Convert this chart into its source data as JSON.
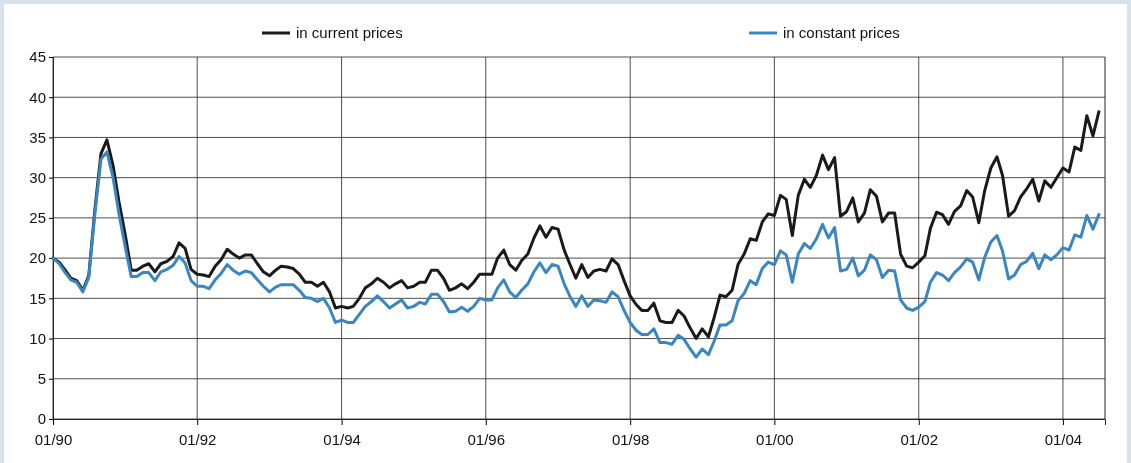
{
  "chart_data": {
    "type": "line",
    "x": [
      "1990-01",
      "1990-02",
      "1990-03",
      "1990-04",
      "1990-05",
      "1990-06",
      "1990-07",
      "1990-08",
      "1990-09",
      "1990-10",
      "1990-11",
      "1990-12",
      "1991-01",
      "1991-02",
      "1991-03",
      "1991-04",
      "1991-05",
      "1991-06",
      "1991-07",
      "1991-08",
      "1991-09",
      "1991-10",
      "1991-11",
      "1991-12",
      "1992-01",
      "1992-02",
      "1992-03",
      "1992-04",
      "1992-05",
      "1992-06",
      "1992-07",
      "1992-08",
      "1992-09",
      "1992-10",
      "1992-11",
      "1992-12",
      "1993-01",
      "1993-02",
      "1993-03",
      "1993-04",
      "1993-05",
      "1993-06",
      "1993-07",
      "1993-08",
      "1993-09",
      "1993-10",
      "1993-11",
      "1993-12",
      "1994-01",
      "1994-02",
      "1994-03",
      "1994-04",
      "1994-05",
      "1994-06",
      "1994-07",
      "1994-08",
      "1994-09",
      "1994-10",
      "1994-11",
      "1994-12",
      "1995-01",
      "1995-02",
      "1995-03",
      "1995-04",
      "1995-05",
      "1995-06",
      "1995-07",
      "1995-08",
      "1995-09",
      "1995-10",
      "1995-11",
      "1995-12",
      "1996-01",
      "1996-02",
      "1996-03",
      "1996-04",
      "1996-05",
      "1996-06",
      "1996-07",
      "1996-08",
      "1996-09",
      "1996-10",
      "1996-11",
      "1996-12",
      "1997-01",
      "1997-02",
      "1997-03",
      "1997-04",
      "1997-05",
      "1997-06",
      "1997-07",
      "1997-08",
      "1997-09",
      "1997-10",
      "1997-11",
      "1997-12",
      "1998-01",
      "1998-02",
      "1998-03",
      "1998-04",
      "1998-05",
      "1998-06",
      "1998-07",
      "1998-08",
      "1998-09",
      "1998-10",
      "1998-11",
      "1998-12",
      "1999-01",
      "1999-02",
      "1999-03",
      "1999-04",
      "1999-05",
      "1999-06",
      "1999-07",
      "1999-08",
      "1999-09",
      "1999-10",
      "1999-11",
      "1999-12",
      "2000-01",
      "2000-02",
      "2000-03",
      "2000-04",
      "2000-05",
      "2000-06",
      "2000-07",
      "2000-08",
      "2000-09",
      "2000-10",
      "2000-11",
      "2000-12",
      "2001-01",
      "2001-02",
      "2001-03",
      "2001-04",
      "2001-05",
      "2001-06",
      "2001-07",
      "2001-08",
      "2001-09",
      "2001-10",
      "2001-11",
      "2001-12",
      "2002-01",
      "2002-02",
      "2002-03",
      "2002-04",
      "2002-05",
      "2002-06",
      "2002-07",
      "2002-08",
      "2002-09",
      "2002-10",
      "2002-11",
      "2002-12",
      "2003-01",
      "2003-02",
      "2003-03",
      "2003-04",
      "2003-05",
      "2003-06",
      "2003-07",
      "2003-08",
      "2003-09",
      "2003-10",
      "2003-11",
      "2003-12",
      "2004-01",
      "2004-02",
      "2004-03",
      "2004-04",
      "2004-05",
      "2004-06",
      "2004-07"
    ],
    "xlim": [
      "1990-01",
      "2004-08"
    ],
    "xticks": [
      {
        "value": "1990-01",
        "label": "01/90"
      },
      {
        "value": "1992-01",
        "label": "01/92"
      },
      {
        "value": "1994-01",
        "label": "01/94"
      },
      {
        "value": "1996-01",
        "label": "01/96"
      },
      {
        "value": "1998-01",
        "label": "01/98"
      },
      {
        "value": "2000-01",
        "label": "01/00"
      },
      {
        "value": "2002-01",
        "label": "01/02"
      },
      {
        "value": "2004-01",
        "label": "01/04"
      }
    ],
    "ylim": [
      0,
      45
    ],
    "yticks": [
      0,
      5,
      10,
      15,
      20,
      25,
      30,
      35,
      40,
      45
    ],
    "grid": true,
    "legend": "top",
    "line_style": "solid",
    "marker": "none",
    "series": [
      {
        "name": "in current prices",
        "color": "#1a1a1a",
        "values": [
          20,
          19.5,
          18.6,
          17.5,
          17.2,
          16,
          17.8,
          26,
          33,
          34.7,
          31.5,
          27,
          23,
          18.5,
          18.5,
          19,
          19.3,
          18.3,
          19.3,
          19.6,
          20.2,
          21.9,
          21.2,
          18.6,
          18,
          17.9,
          17.7,
          19,
          19.8,
          21.1,
          20.5,
          20,
          20.4,
          20.4,
          19.3,
          18.3,
          17.8,
          18.5,
          19,
          18.9,
          18.7,
          18,
          17,
          17,
          16.5,
          17,
          15.8,
          13.8,
          14,
          13.8,
          14,
          15,
          16.3,
          16.8,
          17.5,
          17,
          16.3,
          16.8,
          17.2,
          16.3,
          16.5,
          17,
          17,
          18.5,
          18.5,
          17.5,
          16,
          16.3,
          16.8,
          16.2,
          17,
          18,
          18,
          18,
          20,
          21,
          19.2,
          18.5,
          19.7,
          20.5,
          22.5,
          24,
          22.6,
          23.8,
          23.6,
          21,
          19.3,
          17.5,
          19.2,
          17.6,
          18.4,
          18.6,
          18.4,
          19.9,
          19.2,
          17.2,
          15.3,
          14.2,
          13.5,
          13.5,
          14.4,
          12.2,
          12,
          12,
          13.5,
          12.8,
          11.3,
          10,
          11.2,
          10.2,
          12.5,
          15.4,
          15.2,
          16,
          19.2,
          20.5,
          22.4,
          22.2,
          24.5,
          25.5,
          25.3,
          27.8,
          27.3,
          22.8,
          27.8,
          29.8,
          28.8,
          30.3,
          32.8,
          31,
          32.5,
          25.2,
          25.8,
          27.5,
          24.5,
          25.6,
          28.5,
          27.7,
          24.5,
          25.6,
          25.6,
          20.5,
          19,
          18.8,
          19.5,
          20.3,
          23.7,
          25.7,
          25.4,
          24.2,
          25.8,
          26.5,
          28.4,
          27.6,
          24.4,
          28.4,
          31.2,
          32.6,
          30.3,
          25.2,
          25.9,
          27.6,
          28.6,
          29.8,
          27.1,
          29.6,
          28.8,
          30,
          31.2,
          30.7,
          33.8,
          33.4,
          37.7,
          35.2,
          38.2
        ]
      },
      {
        "name": "in constant prices",
        "color": "#3a86c0",
        "values": [
          20,
          19.3,
          18.3,
          17.3,
          17,
          15.8,
          17.6,
          25.5,
          32.3,
          33.2,
          30,
          25.5,
          21.5,
          17.7,
          17.7,
          18.2,
          18.2,
          17.2,
          18.3,
          18.6,
          19.1,
          20.2,
          19.4,
          17.2,
          16.5,
          16.5,
          16.2,
          17.3,
          18.1,
          19.2,
          18.5,
          18,
          18.4,
          18.2,
          17.3,
          16.5,
          15.8,
          16.4,
          16.7,
          16.7,
          16.7,
          16,
          15.1,
          15,
          14.6,
          15,
          13.8,
          12,
          12.3,
          12,
          12,
          13,
          14,
          14.6,
          15.3,
          14.6,
          13.8,
          14.3,
          14.8,
          13.8,
          14,
          14.5,
          14.3,
          15.5,
          15.5,
          14.6,
          13.3,
          13.4,
          13.9,
          13.4,
          14,
          15,
          14.8,
          14.8,
          16.3,
          17.3,
          15.8,
          15.1,
          16,
          16.8,
          18.3,
          19.4,
          18.2,
          19.2,
          19,
          16.8,
          15.3,
          14,
          15.3,
          14,
          14.8,
          14.7,
          14.5,
          15.8,
          15.2,
          13.5,
          12,
          11,
          10.5,
          10.5,
          11.2,
          9.5,
          9.5,
          9.3,
          10.4,
          9.9,
          8.7,
          7.7,
          8.7,
          8,
          9.6,
          11.7,
          11.7,
          12.2,
          14.7,
          15.6,
          17.2,
          16.7,
          18.7,
          19.5,
          19.2,
          20.9,
          20.4,
          17,
          20.5,
          21.8,
          21.2,
          22.4,
          24.2,
          22.5,
          23.8,
          18.4,
          18.6,
          20,
          17.8,
          18.5,
          20.4,
          19.8,
          17.6,
          18.5,
          18.4,
          14.8,
          13.8,
          13.5,
          13.9,
          14.6,
          17,
          18.2,
          17.9,
          17.2,
          18.2,
          18.9,
          19.9,
          19.5,
          17.3,
          20.1,
          22,
          22.8,
          20.9,
          17.4,
          17.9,
          19.2,
          19.6,
          20.6,
          18.7,
          20.4,
          19.8,
          20.4,
          21.3,
          21,
          22.9,
          22.6,
          25.3,
          23.6,
          25.4
        ]
      }
    ]
  }
}
